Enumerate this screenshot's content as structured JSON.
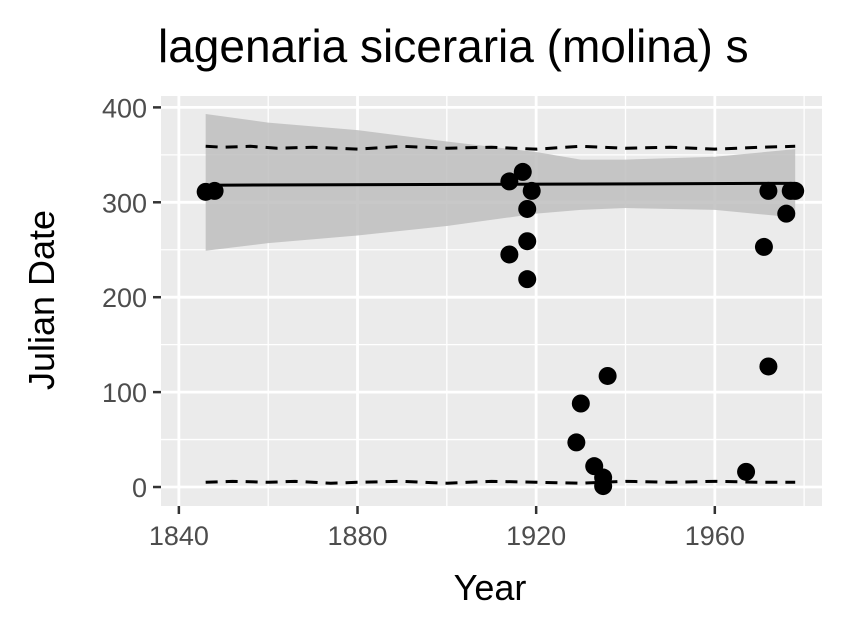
{
  "chart_data": {
    "type": "scatter",
    "title": "lagenaria siceraria (molina) s",
    "xlabel": "Year",
    "ylabel": "Julian Date",
    "xlim": [
      1836,
      1984
    ],
    "ylim": [
      -20,
      412
    ],
    "x_ticks": [
      1840,
      1880,
      1920,
      1960
    ],
    "y_ticks": [
      0,
      100,
      200,
      300,
      400
    ],
    "grid": true,
    "points": [
      {
        "x": 1846,
        "y": 311
      },
      {
        "x": 1848,
        "y": 312
      },
      {
        "x": 1914,
        "y": 322
      },
      {
        "x": 1917,
        "y": 332
      },
      {
        "x": 1914,
        "y": 245
      },
      {
        "x": 1918,
        "y": 293
      },
      {
        "x": 1919,
        "y": 312
      },
      {
        "x": 1918,
        "y": 259
      },
      {
        "x": 1918,
        "y": 219
      },
      {
        "x": 1929,
        "y": 47
      },
      {
        "x": 1930,
        "y": 88
      },
      {
        "x": 1933,
        "y": 22
      },
      {
        "x": 1935,
        "y": 10
      },
      {
        "x": 1935,
        "y": 1
      },
      {
        "x": 1936,
        "y": 117
      },
      {
        "x": 1967,
        "y": 16
      },
      {
        "x": 1971,
        "y": 253
      },
      {
        "x": 1972,
        "y": 312
      },
      {
        "x": 1972,
        "y": 127
      },
      {
        "x": 1976,
        "y": 288
      },
      {
        "x": 1977,
        "y": 312
      },
      {
        "x": 1978,
        "y": 312
      }
    ],
    "fit_line": [
      {
        "x": 1846,
        "y": 318
      },
      {
        "x": 1978,
        "y": 320
      }
    ],
    "confidence_band": {
      "x": [
        1846,
        1860,
        1880,
        1900,
        1920,
        1930,
        1940,
        1960,
        1978
      ],
      "upper": [
        393,
        384,
        376,
        364,
        353,
        345,
        345,
        348,
        356
      ],
      "lower": [
        249,
        257,
        265,
        275,
        288,
        292,
        294,
        292,
        284
      ]
    },
    "dashed_upper": {
      "x": [
        1846,
        1850,
        1856,
        1862,
        1870,
        1880,
        1890,
        1900,
        1910,
        1920,
        1930,
        1940,
        1950,
        1960,
        1970,
        1978
      ],
      "y": [
        359,
        358,
        359,
        357,
        358,
        356,
        359,
        357,
        358,
        356,
        359,
        357,
        358,
        356,
        358,
        359
      ]
    },
    "dashed_lower": {
      "x": [
        1846,
        1852,
        1860,
        1866,
        1874,
        1880,
        1890,
        1900,
        1910,
        1920,
        1930,
        1940,
        1950,
        1960,
        1970,
        1978
      ],
      "y": [
        5,
        6,
        5,
        6,
        4,
        5,
        6,
        4,
        6,
        5,
        4,
        6,
        5,
        6,
        5,
        5
      ]
    },
    "colors": {
      "panel": "#ebebeb",
      "grid": "#ffffff",
      "points": "#000000",
      "band": "#bebebe",
      "line": "#000000"
    }
  }
}
